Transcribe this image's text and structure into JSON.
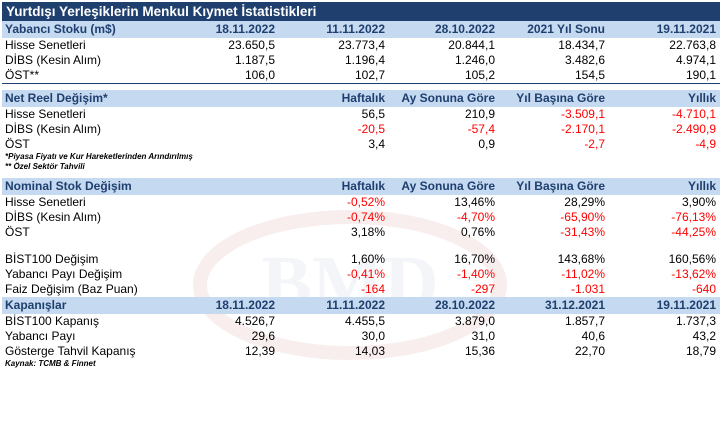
{
  "title": "Yurtdışı Yerleşiklerin Menkul Kıymet İstatistikleri",
  "stock": {
    "header": [
      "Yabancı Stoku (m$)",
      "18.11.2022",
      "11.11.2022",
      "28.10.2022",
      "2021 Yıl Sonu",
      "19.11.2021"
    ],
    "rows": [
      {
        "label": "Hisse Senetleri",
        "values": [
          "23.650,5",
          "23.773,4",
          "20.844,1",
          "18.434,7",
          "22.763,8"
        ]
      },
      {
        "label": "DİBS (Kesin Alım)",
        "values": [
          "1.187,5",
          "1.196,4",
          "1.246,0",
          "3.482,6",
          "4.974,1"
        ]
      },
      {
        "label": "ÖST**",
        "values": [
          "106,0",
          "102,7",
          "105,2",
          "154,5",
          "190,1"
        ]
      }
    ]
  },
  "net": {
    "header": [
      "Net Reel Değişim*",
      "Haftalık",
      "Ay Sonuna Göre",
      "Yıl Başına Göre",
      "Yıllık"
    ],
    "rows": [
      {
        "label": "Hisse Senetleri",
        "values": [
          "56,5",
          "210,9",
          "-3.509,1",
          "-4.710,1"
        ]
      },
      {
        "label": "DİBS (Kesin Alım)",
        "values": [
          "-20,5",
          "-57,4",
          "-2.170,1",
          "-2.490,9"
        ]
      },
      {
        "label": "ÖST",
        "values": [
          "3,4",
          "0,9",
          "-2,7",
          "-4,9"
        ]
      }
    ]
  },
  "notes": {
    "note1": "*Piyasa Fiyatı ve Kur Hareketlerinden Arındırılmış",
    "note2": "** Özel Sektör Tahvili"
  },
  "nominal": {
    "header": [
      "Nominal Stok Değişim",
      "Haftalık",
      "Ay Sonuna Göre",
      "Yıl Başına Göre",
      "Yıllık"
    ],
    "rows": [
      {
        "label": "Hisse Senetleri",
        "values": [
          "-0,52%",
          "13,46%",
          "28,29%",
          "3,90%"
        ]
      },
      {
        "label": "DİBS (Kesin Alım)",
        "values": [
          "-0,74%",
          "-4,70%",
          "-65,90%",
          "-76,13%"
        ]
      },
      {
        "label": "ÖST",
        "values": [
          "3,18%",
          "0,76%",
          "-31,43%",
          "-44,25%"
        ]
      }
    ]
  },
  "market": {
    "rows": [
      {
        "label": "BİST100 Değişim",
        "values": [
          "1,60%",
          "16,70%",
          "143,68%",
          "160,56%"
        ]
      },
      {
        "label": "Yabancı Payı Değişim",
        "values": [
          "-0,41%",
          "-1,40%",
          "-11,02%",
          "-13,62%"
        ]
      },
      {
        "label": "Faiz Değişim (Baz Puan)",
        "values": [
          "-164",
          "-297",
          "-1.031",
          "-640"
        ]
      }
    ]
  },
  "closing": {
    "header": [
      "Kapanışlar",
      "18.11.2022",
      "11.11.2022",
      "28.10.2022",
      "31.12.2021",
      "19.11.2021"
    ],
    "rows": [
      {
        "label": "BİST100 Kapanış",
        "values": [
          "4.526,7",
          "4.455,5",
          "3.879,0",
          "1.857,7",
          "1.737,3"
        ]
      },
      {
        "label": "Yabancı Payı",
        "values": [
          "29,6",
          "30,0",
          "31,0",
          "40,6",
          "43,2"
        ]
      },
      {
        "label": "Gösterge Tahvil Kapanış",
        "values": [
          "12,39",
          "14,03",
          "15,36",
          "22,70",
          "18,79"
        ]
      }
    ]
  },
  "source": "Kaynak: TCMB & Finnet",
  "colors": {
    "title_bg": "#1f3f6e",
    "header_bg": "#c5d9f1",
    "header_text": "#1f3f6e",
    "negative": "#ff0000"
  }
}
